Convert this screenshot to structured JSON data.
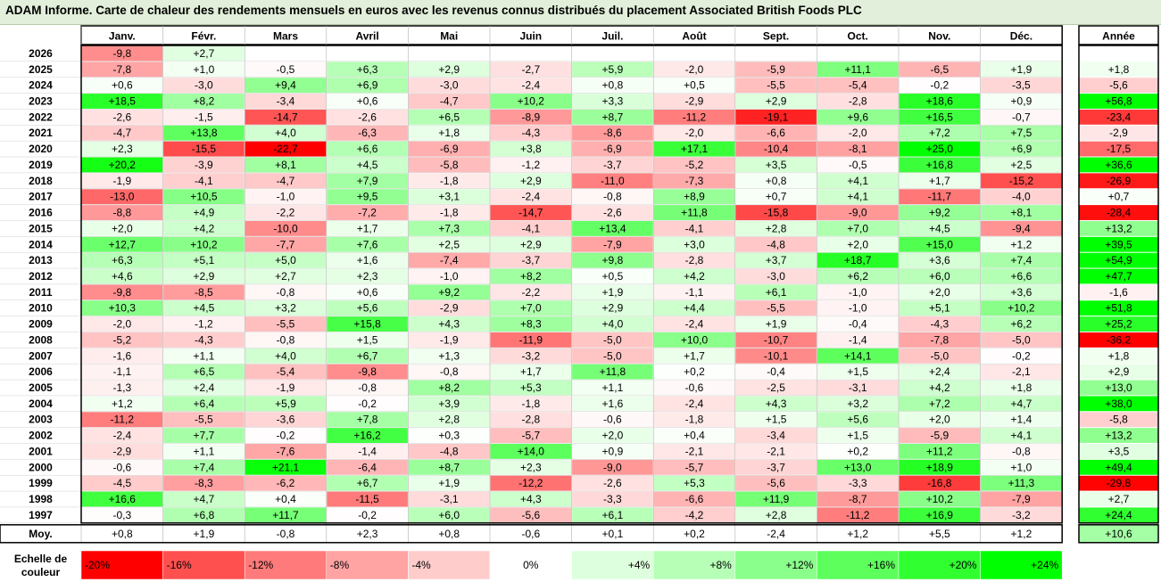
{
  "title": "ADAM Informe. Carte de chaleur des rendements mensuels en euros avec les revenus connus distribués du placement Associated British Foods PLC",
  "chart_data": {
    "type": "heatmap",
    "columns": [
      "Janv.",
      "Févr.",
      "Mars",
      "Avril",
      "Mai",
      "Juin",
      "Juil.",
      "Août",
      "Sept.",
      "Oct.",
      "Nov.",
      "Déc."
    ],
    "year_header": "Année",
    "rows": [
      {
        "year": "2026",
        "months": [
          "-9,8",
          "+2,7",
          "",
          "",
          "",
          "",
          "",
          "",
          "",
          "",
          "",
          ""
        ],
        "annual": ""
      },
      {
        "year": "2025",
        "months": [
          "-7,8",
          "+1,0",
          "-0,5",
          "+6,3",
          "+2,9",
          "-2,7",
          "+5,9",
          "-2,0",
          "-5,9",
          "+11,1",
          "-6,5",
          "+1,9"
        ],
        "annual": "+1,8"
      },
      {
        "year": "2024",
        "months": [
          "+0,6",
          "-3,0",
          "+9,4",
          "+6,9",
          "-3,0",
          "-2,4",
          "+0,8",
          "+0,5",
          "-5,5",
          "-5,4",
          "-0,2",
          "-3,5"
        ],
        "annual": "-5,6"
      },
      {
        "year": "2023",
        "months": [
          "+18,5",
          "+8,2",
          "-3,4",
          "+0,6",
          "-4,7",
          "+10,2",
          "+3,3",
          "-2,9",
          "+2,9",
          "-2,8",
          "+18,6",
          "+0,9"
        ],
        "annual": "+56,8"
      },
      {
        "year": "2022",
        "months": [
          "-2,6",
          "-1,5",
          "-14,7",
          "-2,6",
          "+6,5",
          "-8,9",
          "+8,7",
          "-11,2",
          "-19,1",
          "+9,6",
          "+16,5",
          "-0,7"
        ],
        "annual": "-23,4"
      },
      {
        "year": "2021",
        "months": [
          "-4,7",
          "+13,8",
          "+4,0",
          "-6,3",
          "+1,8",
          "-4,3",
          "-8,6",
          "-2,0",
          "-6,6",
          "-2,0",
          "+7,2",
          "+7,5"
        ],
        "annual": "-2,9"
      },
      {
        "year": "2020",
        "months": [
          "+2,3",
          "-15,5",
          "-22,7",
          "+6,6",
          "-6,9",
          "+3,8",
          "-6,9",
          "+17,1",
          "-10,4",
          "-8,1",
          "+25,0",
          "+6,9"
        ],
        "annual": "-17,5"
      },
      {
        "year": "2019",
        "months": [
          "+20,2",
          "-3,9",
          "+8,1",
          "+4,5",
          "-5,8",
          "-1,2",
          "-3,7",
          "-5,2",
          "+3,5",
          "-0,5",
          "+16,8",
          "+2,5"
        ],
        "annual": "+36,6"
      },
      {
        "year": "2018",
        "months": [
          "-1,9",
          "-4,1",
          "-4,7",
          "+7,9",
          "-1,8",
          "+2,9",
          "-11,0",
          "-7,3",
          "+0,8",
          "+4,1",
          "+1,7",
          "-15,2"
        ],
        "annual": "-26,9"
      },
      {
        "year": "2017",
        "months": [
          "-13,0",
          "+10,5",
          "-1,0",
          "+9,5",
          "+3,1",
          "-2,4",
          "-0,8",
          "+8,9",
          "+0,7",
          "+4,1",
          "-11,7",
          "-4,0"
        ],
        "annual": "+0,7"
      },
      {
        "year": "2016",
        "months": [
          "-8,8",
          "+4,9",
          "-2,2",
          "-7,2",
          "-1,8",
          "-14,7",
          "-2,6",
          "+11,8",
          "-15,8",
          "-9,0",
          "+9,2",
          "+8,1"
        ],
        "annual": "-28,4"
      },
      {
        "year": "2015",
        "months": [
          "+2,0",
          "+4,2",
          "-10,0",
          "+1,7",
          "+7,3",
          "-4,1",
          "+13,4",
          "-4,1",
          "+2,8",
          "+7,0",
          "+4,5",
          "-9,4"
        ],
        "annual": "+13,2"
      },
      {
        "year": "2014",
        "months": [
          "+12,7",
          "+10,2",
          "-7,7",
          "+7,6",
          "+2,5",
          "+2,9",
          "-7,9",
          "+3,0",
          "-4,8",
          "+2,0",
          "+15,0",
          "+1,2"
        ],
        "annual": "+39,5"
      },
      {
        "year": "2013",
        "months": [
          "+6,3",
          "+5,1",
          "+5,0",
          "+1,6",
          "-7,4",
          "-3,7",
          "+9,8",
          "-2,8",
          "+3,7",
          "+18,7",
          "+3,6",
          "+7,4"
        ],
        "annual": "+54,9"
      },
      {
        "year": "2012",
        "months": [
          "+4,6",
          "+2,9",
          "+2,7",
          "+2,3",
          "-1,0",
          "+8,2",
          "+0,5",
          "+4,2",
          "-3,0",
          "+6,2",
          "+6,0",
          "+6,6"
        ],
        "annual": "+47,7"
      },
      {
        "year": "2011",
        "months": [
          "-9,8",
          "-8,5",
          "-0,8",
          "+0,6",
          "+9,2",
          "-2,2",
          "+1,9",
          "-1,1",
          "+6,1",
          "-1,0",
          "+2,0",
          "+3,6"
        ],
        "annual": "-1,6"
      },
      {
        "year": "2010",
        "months": [
          "+10,3",
          "+4,5",
          "+3,2",
          "+5,6",
          "-2,9",
          "+7,0",
          "+2,9",
          "+4,4",
          "-5,5",
          "-1,0",
          "+5,1",
          "+10,2"
        ],
        "annual": "+51,8"
      },
      {
        "year": "2009",
        "months": [
          "-2,0",
          "-1,2",
          "-5,5",
          "+15,8",
          "+4,3",
          "+8,3",
          "+4,0",
          "-2,4",
          "+1,9",
          "-0,4",
          "-4,3",
          "+6,2"
        ],
        "annual": "+25,2"
      },
      {
        "year": "2008",
        "months": [
          "-5,2",
          "-4,3",
          "-0,8",
          "+1,5",
          "-1,9",
          "-11,9",
          "-5,0",
          "+10,0",
          "-10,7",
          "-1,4",
          "-7,8",
          "-5,0"
        ],
        "annual": "-36,2"
      },
      {
        "year": "2007",
        "months": [
          "-1,6",
          "+1,1",
          "+4,0",
          "+6,7",
          "+1,3",
          "-3,2",
          "-5,0",
          "+1,7",
          "-10,1",
          "+14,1",
          "-5,0",
          "-0,2"
        ],
        "annual": "+1,8"
      },
      {
        "year": "2006",
        "months": [
          "-1,1",
          "+6,5",
          "-5,4",
          "-9,8",
          "-0,8",
          "+1,7",
          "+11,8",
          "+0,2",
          "-0,4",
          "+1,5",
          "+2,4",
          "-2,1"
        ],
        "annual": "+2,9"
      },
      {
        "year": "2005",
        "months": [
          "-1,3",
          "+2,4",
          "-1,9",
          "-0,8",
          "+8,2",
          "+5,3",
          "+1,1",
          "-0,6",
          "-2,5",
          "-3,1",
          "+4,2",
          "+1,8"
        ],
        "annual": "+13,0"
      },
      {
        "year": "2004",
        "months": [
          "+1,2",
          "+6,4",
          "+5,9",
          "-0,2",
          "+3,9",
          "-1,8",
          "+1,6",
          "-2,4",
          "+4,3",
          "+3,2",
          "+7,2",
          "+4,7"
        ],
        "annual": "+38,0"
      },
      {
        "year": "2003",
        "months": [
          "-11,2",
          "-5,5",
          "-3,6",
          "+7,8",
          "+2,8",
          "-2,8",
          "-0,6",
          "-1,8",
          "+1,5",
          "+5,6",
          "+2,0",
          "+1,4"
        ],
        "annual": "-5,8"
      },
      {
        "year": "2002",
        "months": [
          "-2,4",
          "+7,7",
          "-0,2",
          "+16,2",
          "+0,3",
          "-5,7",
          "+2,0",
          "+0,4",
          "-3,4",
          "+1,5",
          "-5,9",
          "+4,1"
        ],
        "annual": "+13,2"
      },
      {
        "year": "2001",
        "months": [
          "-2,9",
          "+1,1",
          "-7,6",
          "-1,4",
          "-4,8",
          "+14,0",
          "+0,9",
          "-2,1",
          "-2,1",
          "+0,2",
          "+11,2",
          "-0,8"
        ],
        "annual": "+3,5"
      },
      {
        "year": "2000",
        "months": [
          "-0,6",
          "+7,4",
          "+21,1",
          "-6,4",
          "+8,7",
          "+2,3",
          "-9,0",
          "-5,7",
          "-3,7",
          "+13,0",
          "+18,9",
          "+1,0"
        ],
        "annual": "+49,4"
      },
      {
        "year": "1999",
        "months": [
          "-4,5",
          "-8,3",
          "-6,2",
          "+6,7",
          "+1,9",
          "-12,2",
          "-2,6",
          "+5,3",
          "-5,6",
          "-3,3",
          "-16,8",
          "+11,3"
        ],
        "annual": "-29,8"
      },
      {
        "year": "1998",
        "months": [
          "+16,6",
          "+4,7",
          "+0,4",
          "-11,5",
          "-3,1",
          "+4,3",
          "-3,3",
          "-6,6",
          "+11,9",
          "-8,7",
          "+10,2",
          "-7,9"
        ],
        "annual": "+2,7"
      },
      {
        "year": "1997",
        "months": [
          "-0,3",
          "+6,8",
          "+11,7",
          "-0,2",
          "+6,0",
          "-5,6",
          "+6,1",
          "-4,2",
          "+2,8",
          "-11,2",
          "+16,9",
          "-3,2"
        ],
        "annual": "+24,4"
      }
    ],
    "average": {
      "label": "Moy.",
      "months": [
        "+0,8",
        "+1,9",
        "-0,8",
        "+2,3",
        "+0,8",
        "-0,6",
        "+0,1",
        "+0,2",
        "-2,4",
        "+1,2",
        "+5,5",
        "+1,2"
      ],
      "annual": "+10,6"
    },
    "scale": {
      "label_line1": "Echelle de",
      "label_line2": "couleur",
      "stops": [
        {
          "label": "-20%",
          "color": "#ff0000"
        },
        {
          "label": "-16%",
          "color": "#ff5050"
        },
        {
          "label": "-12%",
          "color": "#ff7a7a"
        },
        {
          "label": "-8%",
          "color": "#ffa3a3"
        },
        {
          "label": "-4%",
          "color": "#ffcccc"
        },
        {
          "label": "0%",
          "color": "#ffffff"
        },
        {
          "label": "+4%",
          "color": "#ddffdd"
        },
        {
          "label": "+8%",
          "color": "#b7ffb7"
        },
        {
          "label": "+12%",
          "color": "#8bff8b"
        },
        {
          "label": "+16%",
          "color": "#5cff5c"
        },
        {
          "label": "+20%",
          "color": "#30ff30"
        },
        {
          "label": "+24%",
          "color": "#00ff00"
        }
      ]
    }
  }
}
